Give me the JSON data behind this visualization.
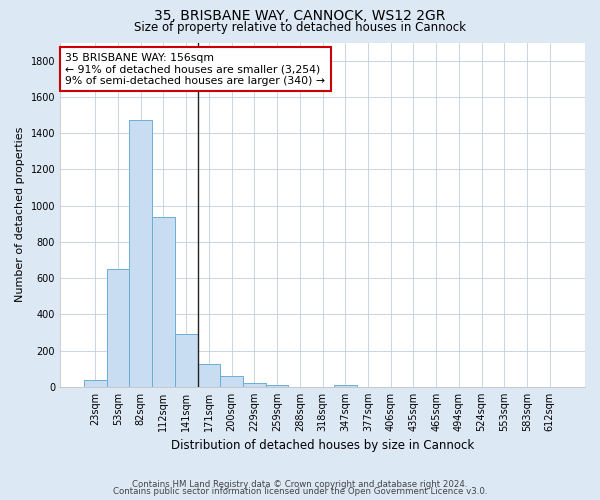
{
  "title1": "35, BRISBANE WAY, CANNOCK, WS12 2GR",
  "title2": "Size of property relative to detached houses in Cannock",
  "xlabel": "Distribution of detached houses by size in Cannock",
  "ylabel": "Number of detached properties",
  "categories": [
    "23sqm",
    "53sqm",
    "82sqm",
    "112sqm",
    "141sqm",
    "171sqm",
    "200sqm",
    "229sqm",
    "259sqm",
    "288sqm",
    "318sqm",
    "347sqm",
    "377sqm",
    "406sqm",
    "435sqm",
    "465sqm",
    "494sqm",
    "524sqm",
    "553sqm",
    "583sqm",
    "612sqm"
  ],
  "values": [
    38,
    650,
    1470,
    935,
    290,
    125,
    62,
    20,
    10,
    0,
    0,
    10,
    0,
    0,
    0,
    0,
    0,
    0,
    0,
    0,
    0
  ],
  "bar_color": "#c8ddf2",
  "bar_edge_color": "#6aaed6",
  "vline_color": "#222222",
  "annotation_line1": "35 BRISBANE WAY: 156sqm",
  "annotation_line2": "← 91% of detached houses are smaller (3,254)",
  "annotation_line3": "9% of semi-detached houses are larger (340) →",
  "annotation_box_color": "#ffffff",
  "annotation_box_edge": "#cc0000",
  "ylim": [
    0,
    1900
  ],
  "yticks": [
    0,
    200,
    400,
    600,
    800,
    1000,
    1200,
    1400,
    1600,
    1800
  ],
  "footer1": "Contains HM Land Registry data © Crown copyright and database right 2024.",
  "footer2": "Contains public sector information licensed under the Open Government Licence v3.0.",
  "bg_color": "#dde8f5",
  "plot_bg": "#ffffff"
}
